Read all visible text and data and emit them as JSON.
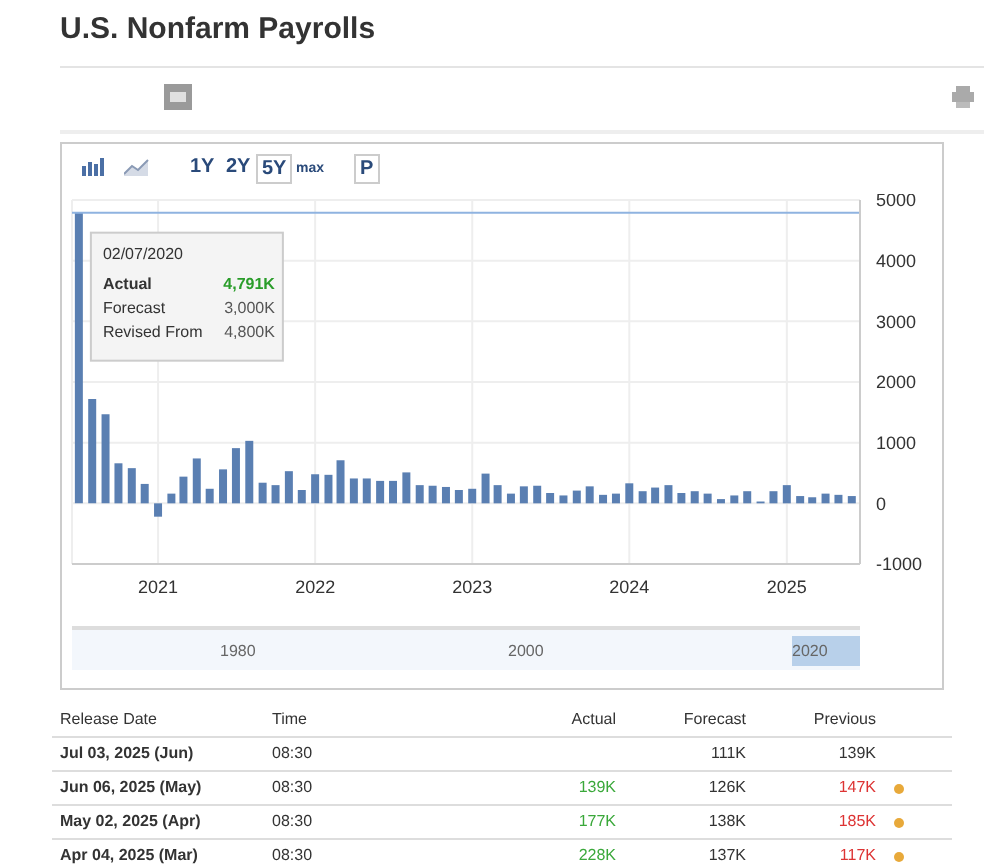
{
  "chart_data": {
    "type": "bar",
    "title": "U.S. Nonfarm Payrolls",
    "x": [
      "2020-07",
      "2020-08",
      "2020-09",
      "2020-10",
      "2020-11",
      "2020-12",
      "2021-01",
      "2021-02",
      "2021-03",
      "2021-04",
      "2021-05",
      "2021-06",
      "2021-07",
      "2021-08",
      "2021-09",
      "2021-10",
      "2021-11",
      "2021-12",
      "2022-01",
      "2022-02",
      "2022-03",
      "2022-04",
      "2022-05",
      "2022-06",
      "2022-07",
      "2022-08",
      "2022-09",
      "2022-10",
      "2022-11",
      "2022-12",
      "2023-01",
      "2023-02",
      "2023-03",
      "2023-04",
      "2023-05",
      "2023-06",
      "2023-07",
      "2023-08",
      "2023-09",
      "2023-10",
      "2023-11",
      "2023-12",
      "2024-01",
      "2024-02",
      "2024-03",
      "2024-04",
      "2024-05",
      "2024-06",
      "2024-07",
      "2024-08",
      "2024-09",
      "2024-10",
      "2024-11",
      "2024-12",
      "2025-01",
      "2025-02",
      "2025-03",
      "2025-04",
      "2025-05",
      "2025-06"
    ],
    "values": [
      4791,
      1720,
      1470,
      660,
      580,
      320,
      -220,
      160,
      440,
      740,
      240,
      560,
      910,
      1030,
      340,
      300,
      530,
      220,
      480,
      470,
      710,
      410,
      410,
      370,
      370,
      510,
      300,
      290,
      270,
      220,
      240,
      490,
      300,
      160,
      280,
      290,
      170,
      130,
      210,
      280,
      140,
      160,
      330,
      200,
      260,
      300,
      170,
      200,
      160,
      70,
      130,
      200,
      30,
      200,
      300,
      120,
      100,
      160,
      140,
      120
    ],
    "color": "#5a7fb2",
    "xlim": [
      "2020-06-15",
      "2025-06-20"
    ],
    "xticks": [
      "2021",
      "2022",
      "2023",
      "2024",
      "2025"
    ],
    "ylim": [
      -1000,
      5000
    ],
    "yticks": [
      -1000,
      0,
      1000,
      2000,
      3000,
      4000,
      5000
    ],
    "grid": true,
    "ref_lines": [
      {
        "axis": "y",
        "value": 4791,
        "color": "#8fb3e0"
      }
    ],
    "annotations": [
      "1Y",
      "2Y",
      "5Y",
      "max",
      "P",
      "1980",
      "2000",
      "2020",
      "Release Date",
      "Time",
      "Actual",
      "Forecast",
      "Previous",
      "Jul 03, 2025 (Jun)",
      "08:30",
      "111K",
      "139K",
      "Jun 06, 2025 (May)",
      "08:30",
      "139K",
      "126K",
      "147K",
      "May 02, 2025 (Apr)",
      "08:30",
      "177K",
      "138K",
      "185K",
      "Apr 04, 2025 (Mar)",
      "08:30",
      "228K",
      "137K",
      "117K",
      "02/07/2020",
      "Actual",
      "4,791K",
      "Forecast",
      "3,000K",
      "Revised From",
      "4,800K"
    ]
  }
}
